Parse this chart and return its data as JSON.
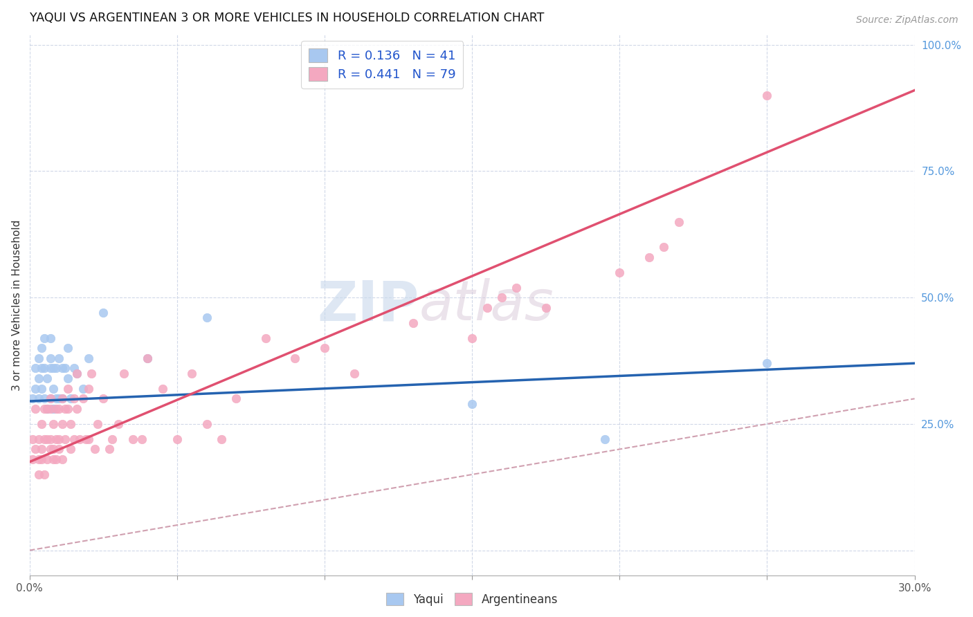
{
  "title": "YAQUI VS ARGENTINEAN 3 OR MORE VEHICLES IN HOUSEHOLD CORRELATION CHART",
  "source": "Source: ZipAtlas.com",
  "ylabel": "3 or more Vehicles in Household",
  "x_min": 0.0,
  "x_max": 0.3,
  "y_min": -0.05,
  "y_max": 1.02,
  "x_ticks": [
    0.0,
    0.05,
    0.1,
    0.15,
    0.2,
    0.25,
    0.3
  ],
  "x_tick_labels": [
    "0.0%",
    "",
    "",
    "",
    "",
    "",
    "30.0%"
  ],
  "y_ticks_right": [
    0.0,
    0.25,
    0.5,
    0.75,
    1.0
  ],
  "y_tick_labels_right": [
    "",
    "25.0%",
    "50.0%",
    "75.0%",
    "100.0%"
  ],
  "legend_R_yaqui": "R = 0.136",
  "legend_N_yaqui": "N = 41",
  "legend_R_argent": "R = 0.441",
  "legend_N_argent": "N = 79",
  "yaqui_color": "#a8c8f0",
  "argent_color": "#f4a8c0",
  "yaqui_line_color": "#2563b0",
  "argent_line_color": "#e05070",
  "identity_line_color": "#d0a0b0",
  "watermark_zip": "ZIP",
  "watermark_atlas": "atlas",
  "background_color": "#ffffff",
  "yaqui_x": [
    0.001,
    0.002,
    0.002,
    0.003,
    0.003,
    0.003,
    0.004,
    0.004,
    0.004,
    0.005,
    0.005,
    0.005,
    0.006,
    0.006,
    0.007,
    0.007,
    0.007,
    0.007,
    0.008,
    0.008,
    0.008,
    0.009,
    0.009,
    0.01,
    0.01,
    0.011,
    0.011,
    0.012,
    0.013,
    0.013,
    0.014,
    0.015,
    0.016,
    0.018,
    0.02,
    0.025,
    0.04,
    0.06,
    0.15,
    0.195,
    0.25
  ],
  "yaqui_y": [
    0.3,
    0.32,
    0.36,
    0.34,
    0.38,
    0.3,
    0.36,
    0.4,
    0.32,
    0.3,
    0.36,
    0.42,
    0.28,
    0.34,
    0.3,
    0.36,
    0.38,
    0.42,
    0.28,
    0.32,
    0.36,
    0.3,
    0.36,
    0.3,
    0.38,
    0.3,
    0.36,
    0.36,
    0.34,
    0.4,
    0.3,
    0.36,
    0.35,
    0.32,
    0.38,
    0.47,
    0.38,
    0.46,
    0.29,
    0.22,
    0.37
  ],
  "argent_x": [
    0.001,
    0.001,
    0.002,
    0.002,
    0.003,
    0.003,
    0.003,
    0.004,
    0.004,
    0.004,
    0.005,
    0.005,
    0.005,
    0.006,
    0.006,
    0.006,
    0.007,
    0.007,
    0.007,
    0.007,
    0.008,
    0.008,
    0.008,
    0.009,
    0.009,
    0.009,
    0.01,
    0.01,
    0.01,
    0.011,
    0.011,
    0.011,
    0.012,
    0.012,
    0.013,
    0.013,
    0.014,
    0.014,
    0.015,
    0.015,
    0.016,
    0.016,
    0.017,
    0.018,
    0.019,
    0.02,
    0.02,
    0.021,
    0.022,
    0.023,
    0.025,
    0.027,
    0.028,
    0.03,
    0.032,
    0.035,
    0.038,
    0.04,
    0.045,
    0.05,
    0.055,
    0.06,
    0.065,
    0.07,
    0.08,
    0.09,
    0.1,
    0.11,
    0.13,
    0.15,
    0.155,
    0.16,
    0.165,
    0.175,
    0.2,
    0.21,
    0.215,
    0.22,
    0.25
  ],
  "argent_y": [
    0.22,
    0.18,
    0.2,
    0.28,
    0.18,
    0.22,
    0.15,
    0.2,
    0.25,
    0.18,
    0.22,
    0.28,
    0.15,
    0.22,
    0.28,
    0.18,
    0.22,
    0.28,
    0.2,
    0.3,
    0.18,
    0.25,
    0.2,
    0.22,
    0.28,
    0.18,
    0.22,
    0.28,
    0.2,
    0.25,
    0.3,
    0.18,
    0.28,
    0.22,
    0.28,
    0.32,
    0.25,
    0.2,
    0.3,
    0.22,
    0.28,
    0.35,
    0.22,
    0.3,
    0.22,
    0.32,
    0.22,
    0.35,
    0.2,
    0.25,
    0.3,
    0.2,
    0.22,
    0.25,
    0.35,
    0.22,
    0.22,
    0.38,
    0.32,
    0.22,
    0.35,
    0.25,
    0.22,
    0.3,
    0.42,
    0.38,
    0.4,
    0.35,
    0.45,
    0.42,
    0.48,
    0.5,
    0.52,
    0.48,
    0.55,
    0.58,
    0.6,
    0.65,
    0.9
  ],
  "regression_yaqui_slope": 0.25,
  "regression_yaqui_intercept": 0.295,
  "regression_argent_slope": 2.45,
  "regression_argent_intercept": 0.175
}
